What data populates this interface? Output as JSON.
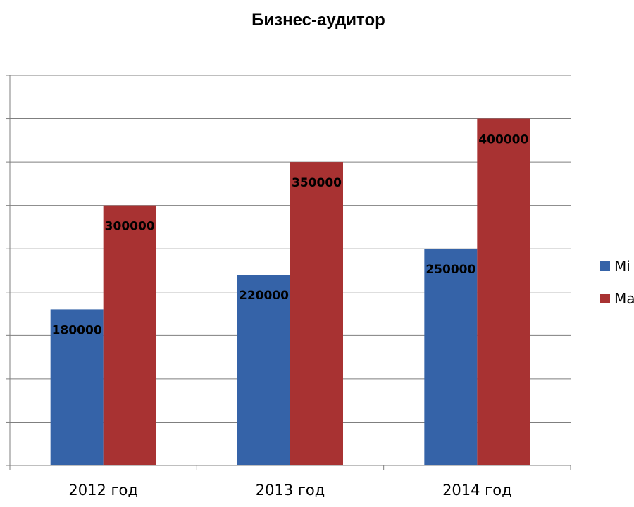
{
  "chart_data": {
    "type": "bar",
    "title": "Бизнес-аудитор",
    "categories": [
      "2012 год",
      "2013 год",
      "2014 год"
    ],
    "series": [
      {
        "name": "Mi",
        "color": "#3563a8",
        "values": [
          180000,
          220000,
          250000
        ]
      },
      {
        "name": "Ma",
        "color": "#a83232",
        "values": [
          300000,
          350000,
          400000
        ]
      }
    ],
    "ylim": [
      0,
      450000
    ],
    "ytick_step": 50000,
    "grid": true,
    "legend": "right",
    "data_labels": true
  }
}
